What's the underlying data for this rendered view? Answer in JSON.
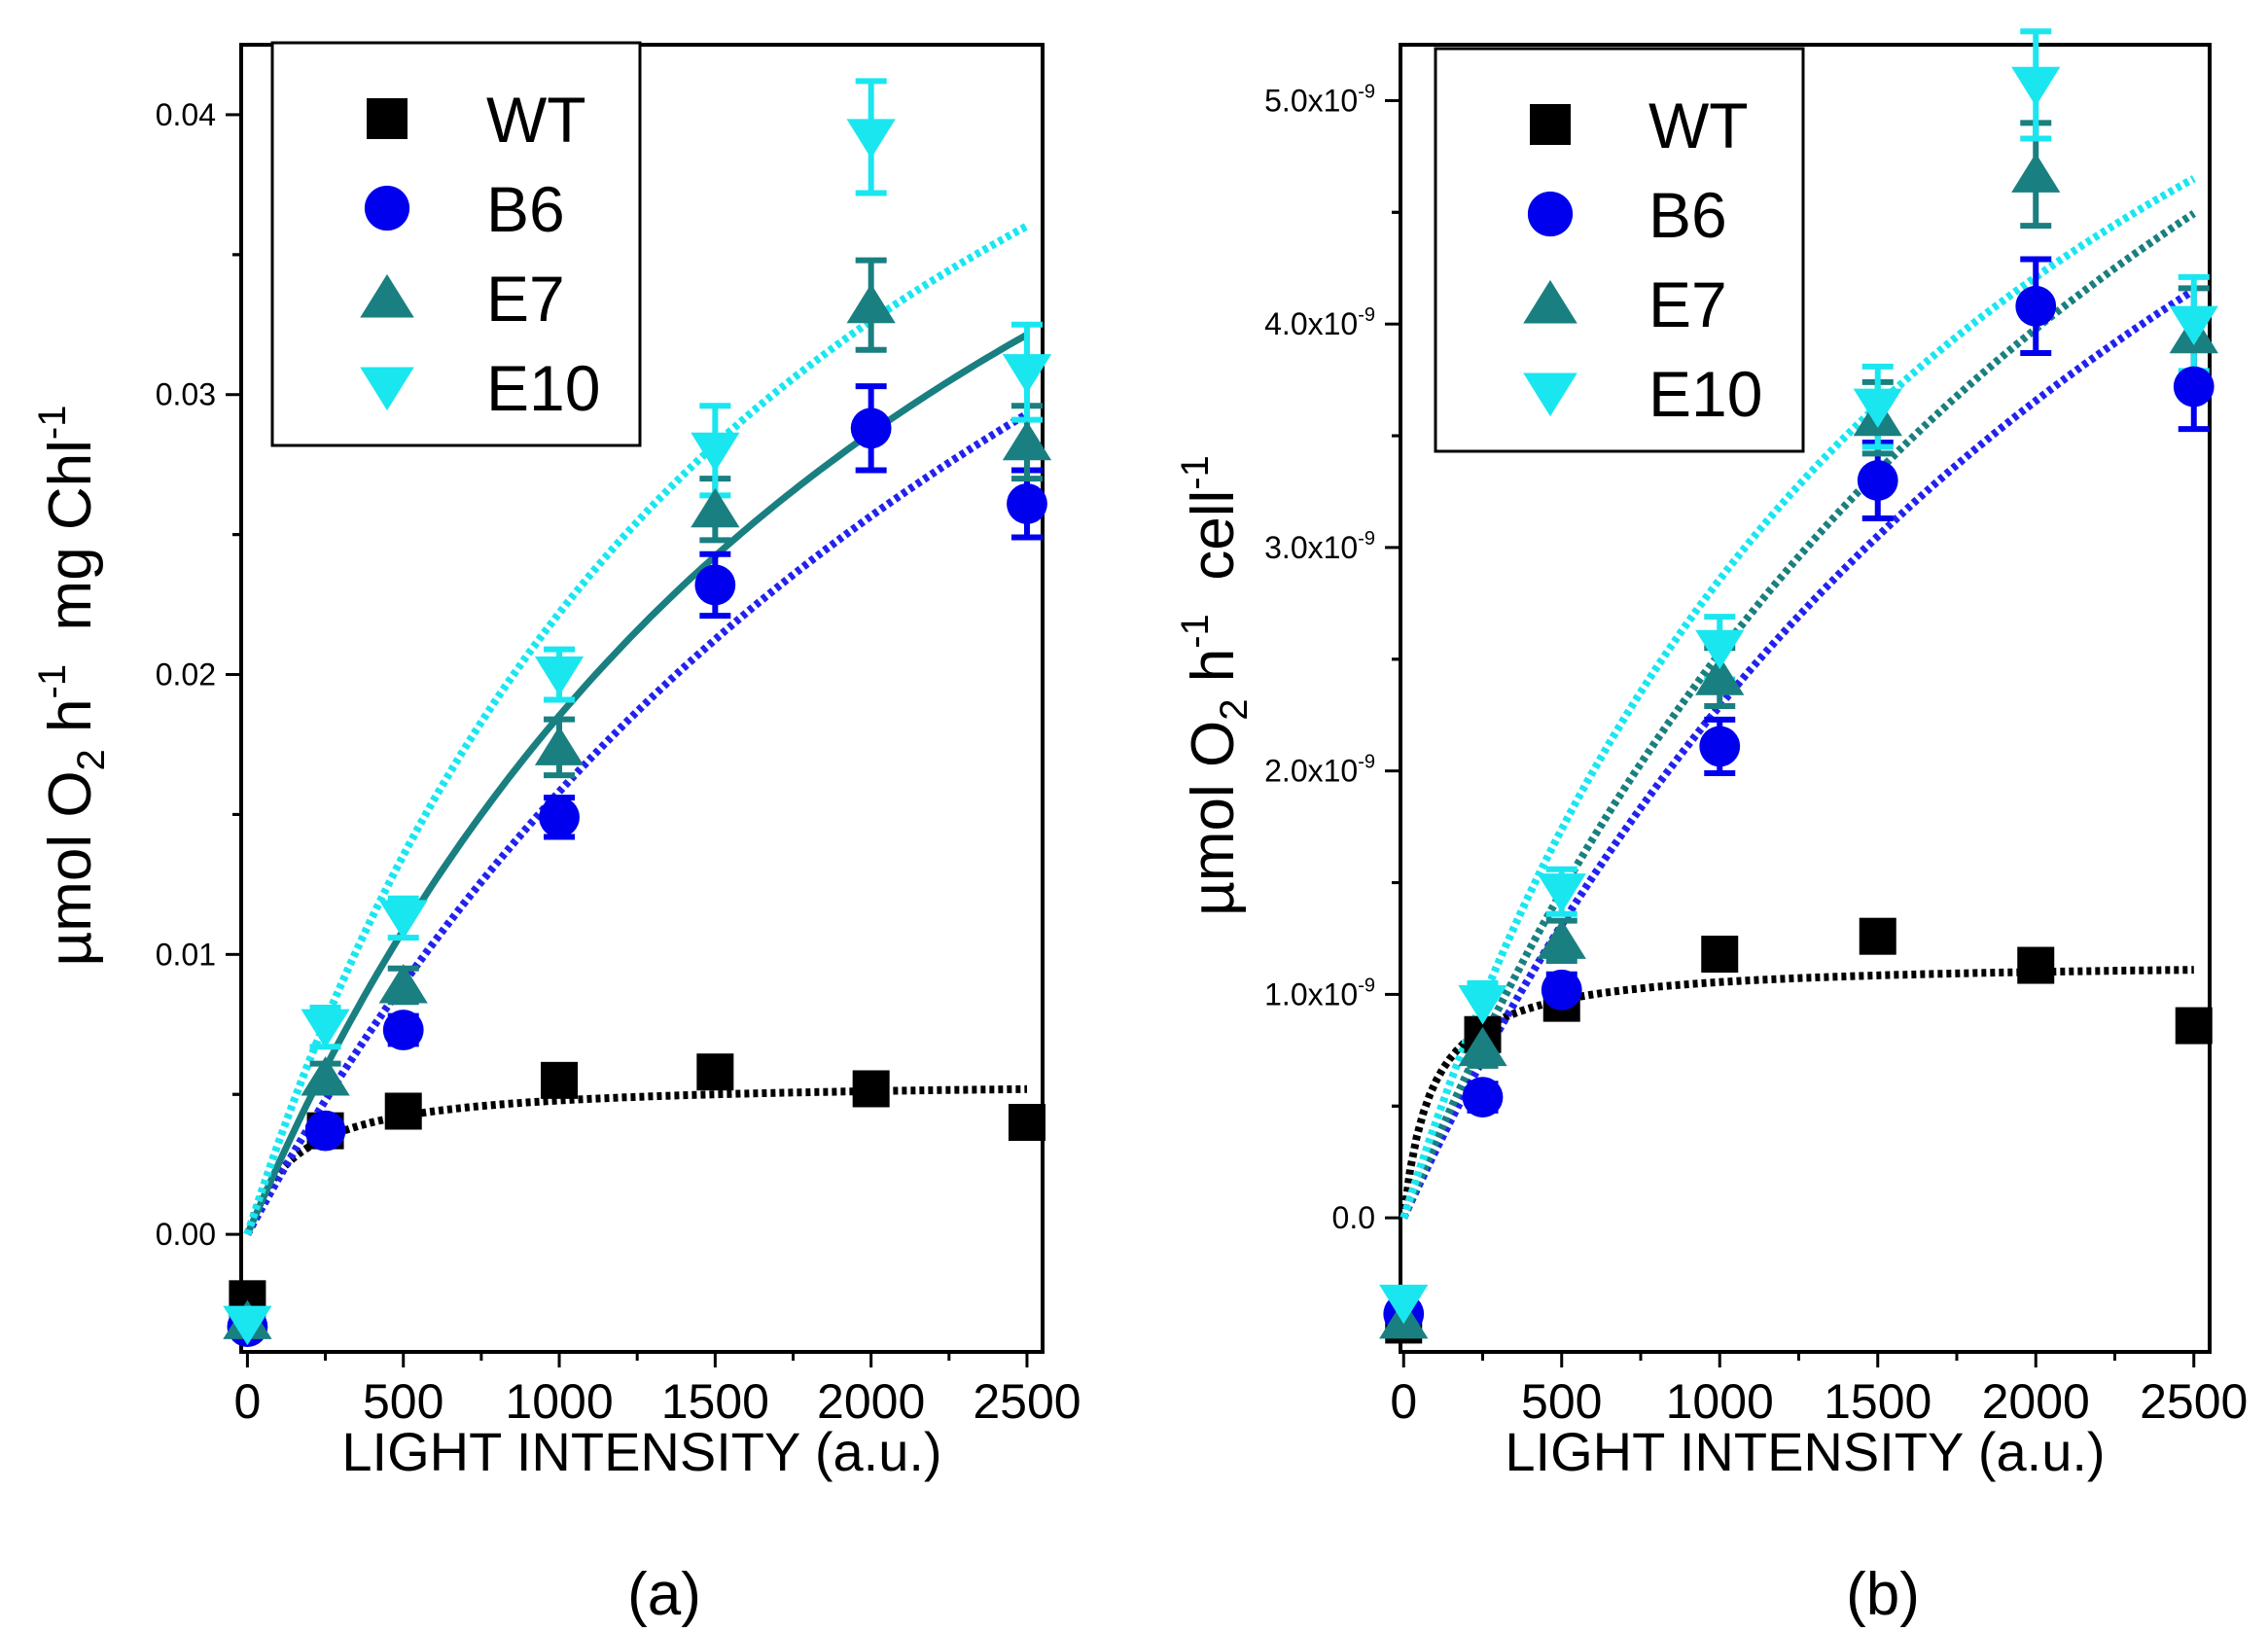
{
  "chart_data": [
    {
      "type": "scatter",
      "panel_label": "(a)",
      "xlabel": "LIGHT INTENSITY (a.u.)",
      "ylabel": {
        "text1": "µmol O",
        "sub1": "2",
        "text2": " h",
        "sup1": "-1",
        "text3": "  mg Chl",
        "sup2": "-1"
      },
      "xlim": [
        -20,
        2550
      ],
      "ylim": [
        -0.0042,
        0.0425
      ],
      "xticks": [
        0,
        500,
        1000,
        1500,
        2000,
        2500
      ],
      "yticks": [
        0.0,
        0.01,
        0.02,
        0.03,
        0.04
      ],
      "ytick_labels": [
        "0.00",
        "0.01",
        "0.02",
        "0.03",
        "0.04"
      ],
      "legend": {
        "position": "top-left",
        "entries": [
          "WT",
          "B6",
          "E7",
          "E10"
        ]
      },
      "series": [
        {
          "name": "WT",
          "color": "#000000",
          "marker": "square",
          "x": [
            0,
            250,
            500,
            1000,
            1500,
            2000,
            2500
          ],
          "y": [
            -0.0023,
            0.0037,
            0.0044,
            0.0055,
            0.0058,
            0.0052,
            0.004
          ],
          "err": [
            0.0004,
            0.0004,
            0.0004,
            0.0004,
            0.0004,
            0.0004,
            0.0004
          ],
          "fit": {
            "vmax": 0.0055,
            "k": 150,
            "color": "#000000",
            "style": "dotted"
          }
        },
        {
          "name": "B6",
          "color": "#0000ee",
          "marker": "circle",
          "x": [
            0,
            250,
            500,
            1000,
            1500,
            2000,
            2500
          ],
          "y": [
            -0.0033,
            0.0037,
            0.0073,
            0.0149,
            0.0232,
            0.0288,
            0.0261
          ],
          "err": [
            0.0003,
            0.0004,
            0.0005,
            0.0007,
            0.0011,
            0.0015,
            0.0012
          ],
          "fit": {
            "vmax": 0.068,
            "k": 3300,
            "color": "#2222ee",
            "style": "dotted"
          }
        },
        {
          "name": "E7",
          "color": "#1a7f80",
          "marker": "triangle-up",
          "x": [
            0,
            250,
            500,
            1000,
            1500,
            2000,
            2500
          ],
          "y": [
            -0.0031,
            0.0056,
            0.0089,
            0.0174,
            0.0259,
            0.0332,
            0.0283
          ],
          "err": [
            0.0003,
            0.0005,
            0.0006,
            0.001,
            0.0011,
            0.0016,
            0.0013
          ],
          "fit": {
            "vmax": 0.063,
            "k": 2400,
            "color": "#1a7f80",
            "style": "solid"
          }
        },
        {
          "name": "E10",
          "color": "#1ae6f0",
          "marker": "triangle-down",
          "x": [
            0,
            250,
            500,
            1000,
            1500,
            2000,
            2500
          ],
          "y": [
            -0.0032,
            0.0074,
            0.0113,
            0.02,
            0.028,
            0.0392,
            0.0308
          ],
          "err": [
            0.0003,
            0.0007,
            0.0007,
            0.0009,
            0.0016,
            0.002,
            0.0017
          ],
          "fit": {
            "vmax": 0.0616,
            "k": 1775,
            "color": "#1ae6f0",
            "style": "dotted"
          }
        }
      ]
    },
    {
      "type": "scatter",
      "panel_label": "(b)",
      "xlabel": "LIGHT INTENSITY (a.u.)",
      "ylabel": {
        "text1": "µmol O",
        "sub1": "2",
        "text2": " h",
        "sup1": "-1",
        "text3": "  cell",
        "sup2": "-1"
      },
      "xlim": [
        -10,
        2550
      ],
      "ylim": [
        -6e-10,
        5.25e-09
      ],
      "xticks": [
        0,
        500,
        1000,
        1500,
        2000,
        2500
      ],
      "yticks": [
        0.0,
        1e-09,
        2e-09,
        3e-09,
        4e-09,
        5e-09
      ],
      "ytick_labels": [
        {
          "mant": "0.0",
          "exp": ""
        },
        {
          "mant": "1.0x10",
          "exp": "-9"
        },
        {
          "mant": "2.0x10",
          "exp": "-9"
        },
        {
          "mant": "3.0x10",
          "exp": "-9"
        },
        {
          "mant": "4.0x10",
          "exp": "-9"
        },
        {
          "mant": "5.0x10",
          "exp": "-9"
        }
      ],
      "legend": {
        "position": "top-left",
        "entries": [
          "WT",
          "B6",
          "E7",
          "E10"
        ]
      },
      "series": [
        {
          "name": "WT",
          "color": "#000000",
          "marker": "square",
          "x": [
            0,
            250,
            500,
            1000,
            1500,
            2000,
            2500
          ],
          "y": [
            -4.8e-10,
            8.2e-10,
            9.6e-10,
            1.18e-09,
            1.26e-09,
            1.13e-09,
            8.6e-10
          ],
          "err": [
            5e-11,
            6e-11,
            6e-11,
            6e-11,
            6e-11,
            6e-11,
            6e-11
          ],
          "fit": {
            "vmax": 1.15e-09,
            "k": 90,
            "color": "#000000",
            "style": "dotted"
          }
        },
        {
          "name": "B6",
          "color": "#0000ee",
          "marker": "circle",
          "x": [
            0,
            250,
            500,
            1000,
            1500,
            2000,
            2500
          ],
          "y": [
            -4.3e-10,
            5.4e-10,
            1.02e-09,
            2.11e-09,
            3.3e-09,
            4.08e-09,
            3.72e-09
          ],
          "err": [
            4e-11,
            6e-11,
            7e-11,
            1.2e-10,
            1.7e-10,
            2.1e-10,
            1.9e-10
          ],
          "fit": {
            "vmax": 9.05e-09,
            "k": 2950,
            "color": "#2222ee",
            "style": "dotted"
          }
        },
        {
          "name": "E7",
          "color": "#1a7f80",
          "marker": "triangle-up",
          "x": [
            0,
            250,
            500,
            1000,
            1500,
            2000,
            2500
          ],
          "y": [
            -4.6e-10,
            7.6e-10,
            1.24e-09,
            2.42e-09,
            3.58e-09,
            4.67e-09,
            3.95e-09
          ],
          "err": [
            4e-11,
            8e-11,
            9e-11,
            1.3e-10,
            1.6e-10,
            2.3e-10,
            2.1e-10
          ],
          "fit": {
            "vmax": 9.35e-09,
            "k": 2700,
            "color": "#1a7f80",
            "style": "dotted"
          }
        },
        {
          "name": "E10",
          "color": "#1ae6f0",
          "marker": "triangle-down",
          "x": [
            0,
            250,
            500,
            1000,
            1500,
            2000,
            2500
          ],
          "y": [
            -3.8e-10,
            9.6e-10,
            1.46e-09,
            2.55e-09,
            3.63e-09,
            5.07e-09,
            4e-09
          ],
          "err": [
            4e-11,
            9e-11,
            1e-10,
            1.4e-10,
            1.8e-10,
            2.4e-10,
            2.1e-10
          ],
          "fit": {
            "vmax": 8e-09,
            "k": 1800,
            "color": "#1ae6f0",
            "style": "dotted"
          }
        }
      ]
    }
  ]
}
